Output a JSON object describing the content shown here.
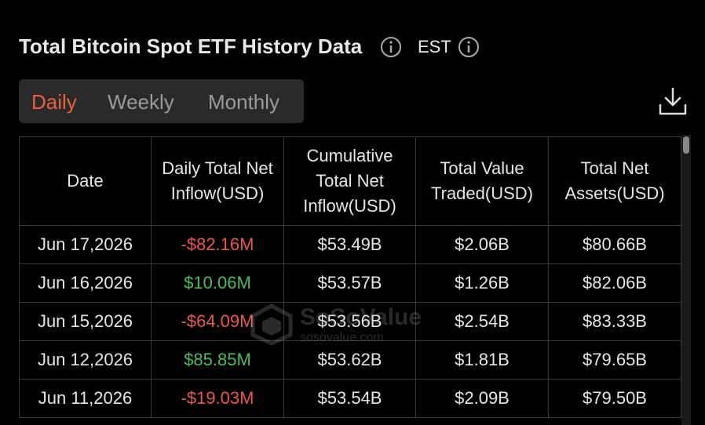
{
  "header": {
    "title": "Total Bitcoin Spot ETF History Data",
    "timezone": "EST"
  },
  "tabs": [
    "Daily",
    "Weekly",
    "Monthly"
  ],
  "watermark": {
    "brand": "SoSoValue",
    "site": "sosovalue.com"
  },
  "table": {
    "columns": [
      "Date",
      "Daily Total Net Inflow(USD)",
      "Cumulative Total Net Inflow(USD)",
      "Total Value Traded(USD)",
      "Total Net Assets(USD)"
    ],
    "rows": [
      [
        "Jun 17,2026",
        "-$82.16M",
        "$53.49B",
        "$2.06B",
        "$80.66B"
      ],
      [
        "Jun 16,2026",
        "$10.06M",
        "$53.57B",
        "$1.26B",
        "$82.06B"
      ],
      [
        "Jun 15,2026",
        "-$64.09M",
        "$53.56B",
        "$2.54B",
        "$83.33B"
      ],
      [
        "Jun 12,2026",
        "$85.85M",
        "$53.62B",
        "$1.81B",
        "$79.65B"
      ],
      [
        "Jun 11,2026",
        "-$19.03M",
        "$53.54B",
        "$2.09B",
        "$79.50B"
      ]
    ],
    "inflow_colors": [
      "#e8584a",
      "#4cbb5e",
      "#e8584a",
      "#4cbb5e",
      "#e8584a"
    ]
  }
}
